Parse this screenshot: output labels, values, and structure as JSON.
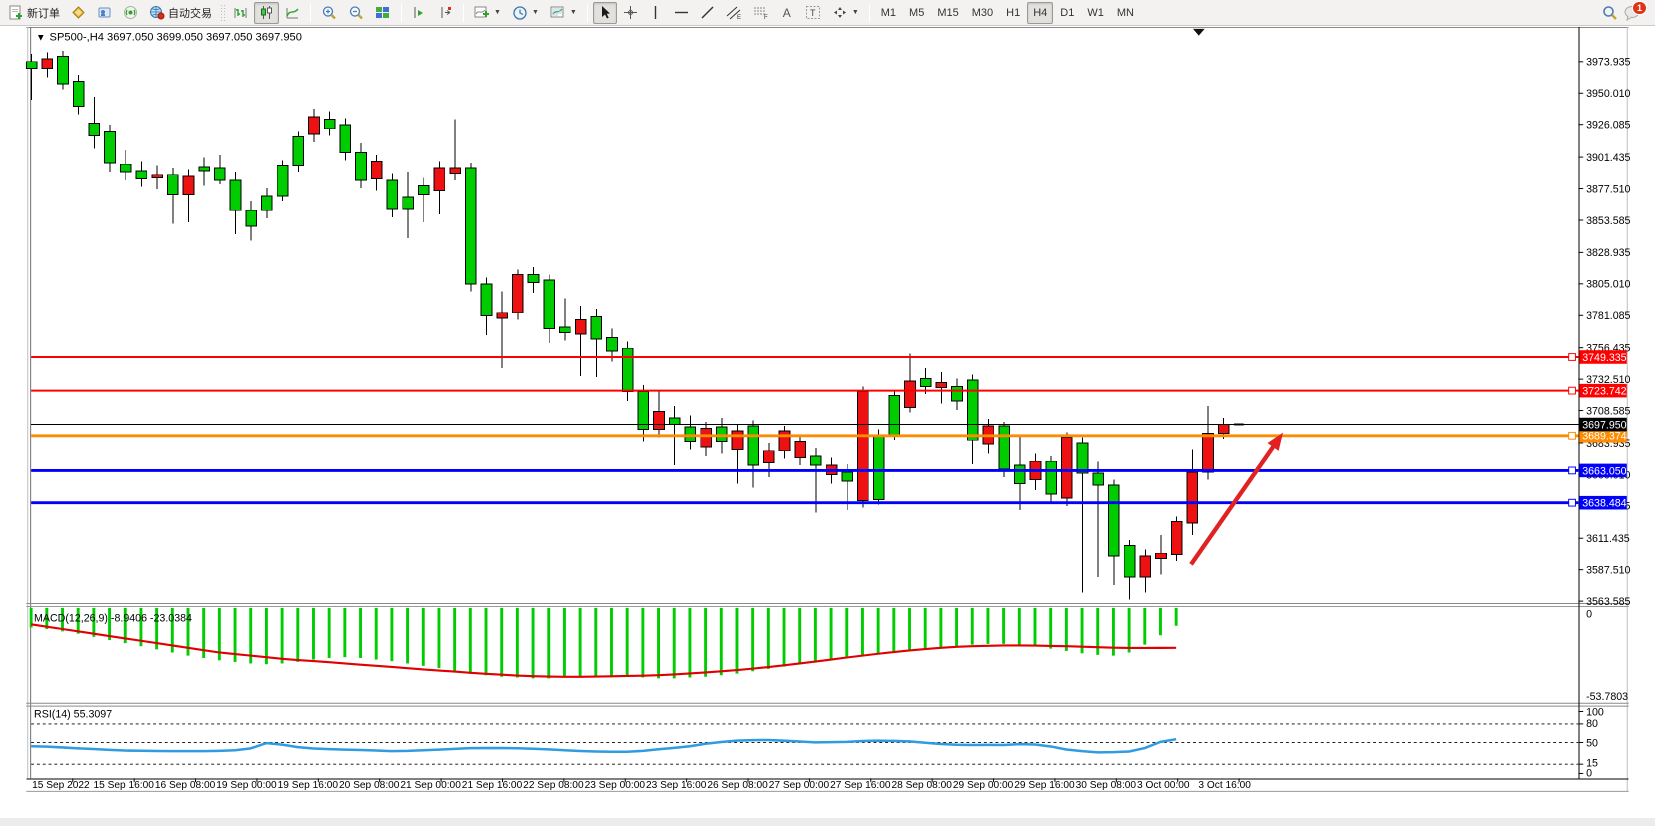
{
  "toolbar": {
    "new_order_label": "新订单",
    "autotrade_label": "自动交易",
    "text_tool_label": "A",
    "label_tool_label": "T",
    "timeframes": [
      "M1",
      "M5",
      "M15",
      "M30",
      "H1",
      "H4",
      "D1",
      "W1",
      "MN"
    ],
    "active_timeframe": "H4",
    "chat_badge": "1"
  },
  "chart_data": {
    "type": "candlestick",
    "symbol": "SP500-",
    "timeframe": "H4",
    "title": "SP500-,H4  3697.050 3699.050 3697.050 3697.950",
    "ohlc_display": [
      3697.05,
      3699.05,
      3697.05,
      3697.95
    ],
    "price_axis_ticks": [
      "3973.935",
      "3950.010",
      "3926.085",
      "3901.435",
      "3877.510",
      "3853.585",
      "3828.935",
      "3805.010",
      "3781.085",
      "3756.435",
      "3732.510",
      "3708.585",
      "3683.935",
      "3660.010",
      "3636.085",
      "3611.435",
      "3587.510",
      "3563.585"
    ],
    "axis_top_price": 3973.935,
    "axis_bottom_price": 3563.585,
    "hlines": [
      {
        "price": 3749.335,
        "label": "3749.335",
        "color": "#ff0000",
        "width": 2
      },
      {
        "price": 3723.742,
        "label": "3723.742",
        "color": "#ff0000",
        "width": 2
      },
      {
        "price": 3689.374,
        "label": "3689.374",
        "color": "#ff8c00",
        "width": 3
      },
      {
        "price": 3663.05,
        "label": "3663.050",
        "color": "#0000ff",
        "width": 3
      },
      {
        "price": 3638.484,
        "label": "3638.484",
        "color": "#0000ff",
        "width": 3
      }
    ],
    "current_price": {
      "value": 3697.95,
      "label": "3697.950",
      "color": "#000000"
    },
    "candle_up_color": "#00cd00",
    "candle_down_color": "#ee1111",
    "candles": [
      [
        3974,
        3969,
        3980,
        3945,
        "g"
      ],
      [
        3976,
        3969,
        3981,
        3962,
        "r"
      ],
      [
        3978,
        3957,
        3982,
        3953,
        "g"
      ],
      [
        3959,
        3940,
        3964,
        3934,
        "g"
      ],
      [
        3927,
        3918,
        3947,
        3908,
        "g"
      ],
      [
        3921,
        3897,
        3926,
        3890,
        "g"
      ],
      [
        3896,
        3890,
        3907,
        3884,
        "g"
      ],
      [
        3891,
        3885,
        3898,
        3879,
        "g"
      ],
      [
        3888,
        3886,
        3895,
        3877,
        "r"
      ],
      [
        3888,
        3873,
        3893,
        3851,
        "g"
      ],
      [
        3887,
        3873,
        3892,
        3852,
        "r"
      ],
      [
        3894,
        3891,
        3901,
        3880,
        "g"
      ],
      [
        3893,
        3884,
        3903,
        3881,
        "g"
      ],
      [
        3884,
        3861,
        3890,
        3843,
        "g"
      ],
      [
        3861,
        3849,
        3868,
        3838,
        "g"
      ],
      [
        3872,
        3861,
        3878,
        3855,
        "g"
      ],
      [
        3895,
        3872,
        3899,
        3868,
        "g"
      ],
      [
        3917,
        3895,
        3921,
        3890,
        "g"
      ],
      [
        3932,
        3919,
        3938,
        3913,
        "r"
      ],
      [
        3930,
        3923,
        3936,
        3918,
        "g"
      ],
      [
        3926,
        3905,
        3931,
        3899,
        "g"
      ],
      [
        3905,
        3884,
        3912,
        3878,
        "g"
      ],
      [
        3898,
        3885,
        3903,
        3876,
        "r"
      ],
      [
        3884,
        3862,
        3889,
        3856,
        "g"
      ],
      [
        3871,
        3862,
        3890,
        3840,
        "g"
      ],
      [
        3880,
        3873,
        3886,
        3852,
        "g"
      ],
      [
        3893,
        3876,
        3898,
        3858,
        "r"
      ],
      [
        3893,
        3889,
        3930,
        3884,
        "r"
      ],
      [
        3893,
        3805,
        3897,
        3799,
        "g"
      ],
      [
        3805,
        3781,
        3810,
        3766,
        "g"
      ],
      [
        3783,
        3779,
        3799,
        3741,
        "r"
      ],
      [
        3812,
        3783,
        3816,
        3778,
        "r"
      ],
      [
        3812,
        3806,
        3818,
        3798,
        "g"
      ],
      [
        3808,
        3771,
        3812,
        3760,
        "g"
      ],
      [
        3772,
        3768,
        3794,
        3762,
        "g"
      ],
      [
        3778,
        3767,
        3788,
        3735,
        "r"
      ],
      [
        3780,
        3763,
        3786,
        3734,
        "g"
      ],
      [
        3764,
        3754,
        3771,
        3746,
        "g"
      ],
      [
        3756,
        3723,
        3761,
        3716,
        "g"
      ],
      [
        3723,
        3694,
        3728,
        3685,
        "g"
      ],
      [
        3708,
        3694,
        3724,
        3688,
        "r"
      ],
      [
        3703,
        3698,
        3712,
        3667,
        "g"
      ],
      [
        3696,
        3685,
        3705,
        3679,
        "g"
      ],
      [
        3695,
        3681,
        3700,
        3674,
        "r"
      ],
      [
        3696,
        3685,
        3703,
        3676,
        "g"
      ],
      [
        3693,
        3679,
        3698,
        3653,
        "r"
      ],
      [
        3697,
        3667,
        3701,
        3650,
        "g"
      ],
      [
        3678,
        3669,
        3684,
        3658,
        "r"
      ],
      [
        3693,
        3678,
        3697,
        3672,
        "r"
      ],
      [
        3685,
        3673,
        3690,
        3667,
        "r"
      ],
      [
        3674,
        3667,
        3680,
        3631,
        "g"
      ],
      [
        3667,
        3660,
        3673,
        3653,
        "r"
      ],
      [
        3662,
        3655,
        3668,
        3633,
        "g"
      ],
      [
        3723,
        3640,
        3727,
        3635,
        "r"
      ],
      [
        3690,
        3641,
        3694,
        3637,
        "g"
      ],
      [
        3720,
        3690,
        3724,
        3686,
        "g"
      ],
      [
        3731,
        3711,
        3752,
        3707,
        "r"
      ],
      [
        3733,
        3727,
        3741,
        3721,
        "g"
      ],
      [
        3730,
        3726,
        3738,
        3714,
        "r"
      ],
      [
        3727,
        3716,
        3733,
        3709,
        "g"
      ],
      [
        3732,
        3686,
        3736,
        3668,
        "g"
      ],
      [
        3697,
        3683,
        3702,
        3676,
        "r"
      ],
      [
        3697,
        3664,
        3700,
        3658,
        "g"
      ],
      [
        3667,
        3653,
        3690,
        3633,
        "g"
      ],
      [
        3670,
        3656,
        3676,
        3648,
        "r"
      ],
      [
        3670,
        3645,
        3674,
        3638,
        "g"
      ],
      [
        3688,
        3642,
        3692,
        3636,
        "r"
      ],
      [
        3684,
        3661,
        3688,
        3570,
        "g"
      ],
      [
        3661,
        3652,
        3670,
        3582,
        "g"
      ],
      [
        3652,
        3598,
        3656,
        3576,
        "g"
      ],
      [
        3606,
        3582,
        3610,
        3565,
        "g"
      ],
      [
        3598,
        3582,
        3603,
        3570,
        "r"
      ],
      [
        3600,
        3596,
        3614,
        3584,
        "r"
      ],
      [
        3624,
        3599,
        3628,
        3594,
        "r"
      ],
      [
        3662,
        3623,
        3679,
        3614,
        "r"
      ],
      [
        3691,
        3662,
        3712,
        3656,
        "r"
      ],
      [
        3698,
        3691,
        3703,
        3687,
        "r"
      ],
      [
        3698,
        3697,
        3698,
        3697,
        "t"
      ]
    ],
    "indicators": {
      "macd": {
        "label": "MACD(12,26,9) -8.9406 -23.0384",
        "params": "12,26,9",
        "value": -8.9406,
        "signal_value": -23.0384,
        "axis_labels": [
          "0",
          "-53.7803"
        ],
        "axis_min": -53.7803,
        "histogram": [
          -10,
          -11,
          -12.5,
          -14,
          -16,
          -18,
          -20,
          -22,
          -24,
          -26,
          -28,
          -29.5,
          -31,
          -32,
          -33,
          -33.5,
          -33,
          -32,
          -30.5,
          -29.5,
          -29,
          -29.5,
          -30.5,
          -31.5,
          -33,
          -34.5,
          -36,
          -37.5,
          -39,
          -40.5,
          -41.5,
          -42,
          -42.5,
          -42.5,
          -42,
          -41.5,
          -41,
          -41,
          -41.5,
          -42,
          -42.5,
          -42.5,
          -42,
          -41.5,
          -40.5,
          -39.5,
          -38,
          -36.5,
          -35,
          -33.5,
          -32,
          -30.5,
          -29,
          -28,
          -27,
          -26,
          -25,
          -24,
          -23,
          -22,
          -21,
          -20.5,
          -20.5,
          -21,
          -22,
          -23.5,
          -25,
          -26.5,
          -27.5,
          -28,
          -26,
          -21,
          -15,
          -8.94
        ],
        "signal": [
          -8,
          -9.5,
          -11,
          -12.5,
          -14,
          -15.5,
          -17,
          -18.5,
          -20,
          -21.5,
          -23,
          -24.5,
          -26,
          -27,
          -28,
          -29,
          -30,
          -30.8,
          -31.5,
          -32.2,
          -33,
          -33.8,
          -34.5,
          -35.2,
          -36,
          -36.8,
          -37.5,
          -38.2,
          -39,
          -39.6,
          -40.2,
          -40.7,
          -41.1,
          -41.4,
          -41.5,
          -41.5,
          -41.4,
          -41.2,
          -41,
          -40.8,
          -40.5,
          -40,
          -39.4,
          -38.7,
          -38,
          -37.2,
          -36.3,
          -35.3,
          -34.2,
          -33,
          -31.8,
          -30.5,
          -29.2,
          -28,
          -26.8,
          -25.7,
          -24.7,
          -23.8,
          -23,
          -22.4,
          -22,
          -21.7,
          -21.5,
          -21.5,
          -21.6,
          -21.8,
          -22,
          -22.3,
          -22.6,
          -22.9,
          -23.1,
          -23.1,
          -23.05,
          -23.04
        ],
        "histogram_color": "#00cd00",
        "signal_color": "#e00000"
      },
      "rsi": {
        "label": "RSI(14) 55.3097",
        "period": 14,
        "value": 55.3097,
        "levels": [
          80,
          50,
          15
        ],
        "axis_labels": [
          "100",
          "80",
          "50",
          "15",
          "0"
        ],
        "series": [
          44,
          43.3,
          42,
          40.5,
          39.5,
          38,
          37,
          36.6,
          36.2,
          36,
          36,
          36,
          36.5,
          37.5,
          40.5,
          49,
          46.5,
          42.5,
          40.2,
          39.3,
          38.5,
          37.9,
          37,
          36.1,
          36.5,
          37.5,
          38.4,
          39.6,
          40.9,
          41,
          41,
          40.7,
          39.9,
          38.9,
          37.4,
          36.2,
          35.4,
          35,
          35.1,
          36.4,
          39,
          41.3,
          44,
          48,
          50.8,
          53,
          53.8,
          54,
          52.9,
          51.6,
          50.2,
          50.6,
          50.9,
          52.3,
          53,
          52.5,
          51.8,
          49.6,
          47.5,
          46.3,
          45.9,
          46.2,
          46,
          47.4,
          46.8,
          43.6,
          38.7,
          36,
          34,
          34.4,
          35.5,
          41,
          51,
          55.3
        ],
        "line_color": "#2f9be0"
      }
    },
    "time_axis_labels": [
      "15 Sep 2022",
      "15 Sep 16:00",
      "16 Sep 08:00",
      "19 Sep 00:00",
      "19 Sep 16:00",
      "20 Sep 08:00",
      "21 Sep 00:00",
      "21 Sep 16:00",
      "22 Sep 08:00",
      "23 Sep 00:00",
      "23 Sep 16:00",
      "26 Sep 08:00",
      "27 Sep 00:00",
      "27 Sep 16:00",
      "28 Sep 08:00",
      "29 Sep 00:00",
      "29 Sep 16:00",
      "30 Sep 08:00",
      "3 Oct 00:00",
      "3 Oct 16:00"
    ],
    "annotation_arrow": {
      "color": "#e02222",
      "from": [
        1203,
        582
      ],
      "to": [
        1298,
        446
      ]
    }
  }
}
